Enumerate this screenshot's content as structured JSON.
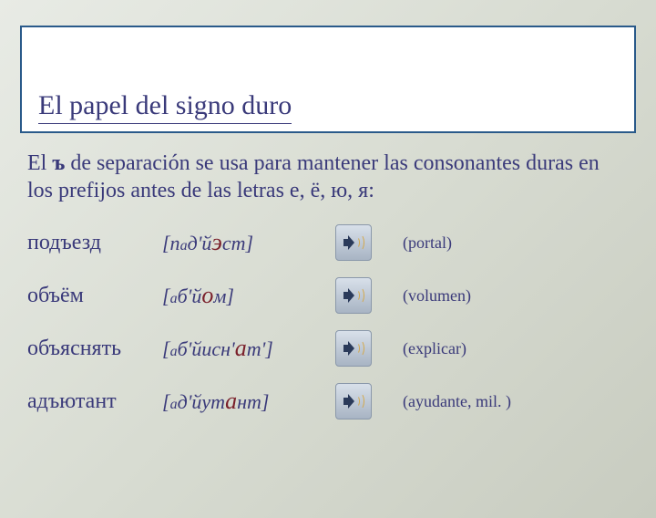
{
  "slide": {
    "title": "El papel del signo duro",
    "explanation_prefix": "El ",
    "explanation_bold": "ъ",
    "explanation_suffix": " de separación se usa para mantener las consonantes duras en los prefijos antes de las letras е, ё, ю, я:",
    "rows": [
      {
        "russian": "подъезд",
        "phon_pre": "[п",
        "phon_small": "а",
        "phon_mid": "д'й",
        "phon_stress": "э",
        "phon_post": "ст]",
        "translation": "(portal)"
      },
      {
        "russian": "объём",
        "phon_pre": "[",
        "phon_small": "а",
        "phon_mid": "б'й",
        "phon_stress": "о",
        "phon_post": "м]",
        "translation": "(volumen)"
      },
      {
        "russian": "объяснять",
        "phon_pre": "[",
        "phon_small": "а",
        "phon_mid": "б'йисн'",
        "phon_stress": "а",
        "phon_post": "т']",
        "translation": "(explicar)"
      },
      {
        "russian": "адъютант",
        "phon_pre": "[",
        "phon_small": "а",
        "phon_mid": "д'йут",
        "phon_stress": "а",
        "phon_post": "нт]",
        "translation": "(ayudante, mil. )"
      }
    ]
  },
  "colors": {
    "title_border": "#2a5a8a",
    "text_main": "#3a3a7a",
    "stress": "#7a1f2a",
    "bg_top": "#e8ebe5",
    "bg_bottom": "#c8ccc0"
  }
}
